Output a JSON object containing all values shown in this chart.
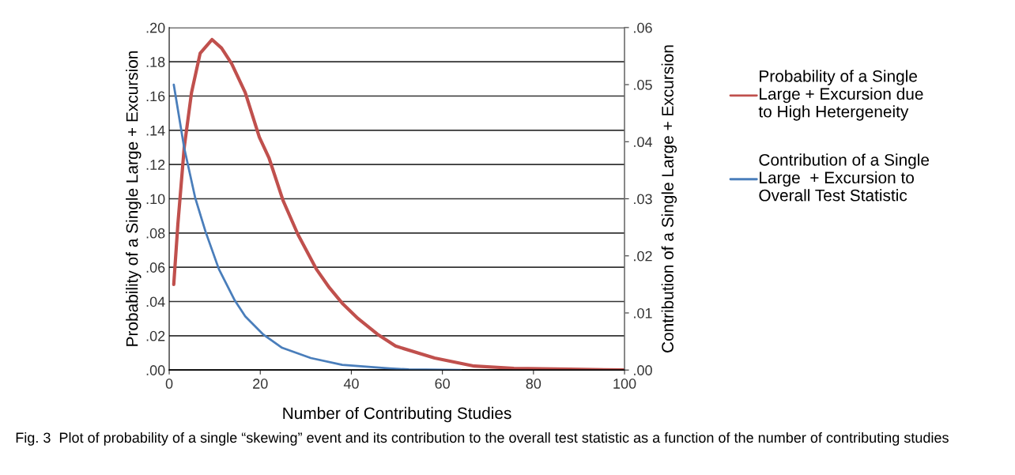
{
  "chart_data": {
    "type": "line",
    "xlabel": "Number of Contributing Studies",
    "ylabel": "Probability of a Single Large + Excursion",
    "y2label": "Contribution of a Single Large + Excursion",
    "annotations": [
      "Fig. 3  Plot of probability of a single “skewing” event and its contribution to the overall test statistic as a function of the number of contributing studies"
    ],
    "xlim": [
      0,
      100
    ],
    "xticks": [
      0,
      20,
      40,
      60,
      80,
      100
    ],
    "ylim": [
      0,
      0.2
    ],
    "yticks": [
      {
        "value": 0,
        "label": ".00"
      },
      {
        "value": 0.02,
        "label": ".02"
      },
      {
        "value": 0.04,
        "label": ".04"
      },
      {
        "value": 0.06,
        "label": ".06"
      },
      {
        "value": 0.08,
        "label": ".08"
      },
      {
        "value": 0.1,
        "label": ".10"
      },
      {
        "value": 0.12,
        "label": ".12"
      },
      {
        "value": 0.14,
        "label": ".14"
      },
      {
        "value": 0.16,
        "label": ".16"
      },
      {
        "value": 0.18,
        "label": ".18"
      },
      {
        "value": 0.2,
        "label": ".20"
      }
    ],
    "y2lim": [
      0,
      0.06
    ],
    "y2ticks": [
      {
        "value": 0,
        "label": ".00"
      },
      {
        "value": 0.01,
        "label": ".01"
      },
      {
        "value": 0.02,
        "label": ".02"
      },
      {
        "value": 0.03,
        "label": ".03"
      },
      {
        "value": 0.04,
        "label": ".04"
      },
      {
        "value": 0.05,
        "label": ".05"
      },
      {
        "value": 0.06,
        "label": ".06"
      }
    ],
    "grid": "y",
    "legend": "right",
    "marker": "none",
    "line_style": "solid",
    "series": [
      {
        "name": "Probability of a Single\nLarge + Excursion due\nto High Hetergeneity",
        "color": "#c0504d",
        "axis": "y",
        "x": [
          1,
          1.9,
          3.3,
          4.9,
          6.8,
          9.4,
          11.5,
          13.7,
          16.7,
          19.8,
          21.9,
          25,
          28.3,
          32.3,
          35.2,
          38,
          41.5,
          45.7,
          49.7,
          58.3,
          67,
          75.7,
          88,
          100
        ],
        "values": [
          0.05,
          0.085,
          0.13,
          0.162,
          0.185,
          0.193,
          0.188,
          0.179,
          0.162,
          0.136,
          0.124,
          0.099,
          0.079,
          0.059,
          0.048,
          0.039,
          0.03,
          0.021,
          0.014,
          0.007,
          0.0023,
          0.001,
          0.0005,
          0
        ]
      },
      {
        "name": "Contribution of a Single\nLarge  + Excursion to\nOverall Test Statistic",
        "color": "#4a7ebb",
        "axis": "y2",
        "x": [
          1,
          3.3,
          5.7,
          8,
          10.9,
          14.4,
          16.7,
          20.7,
          24.8,
          31.1,
          38,
          48.4,
          52.6,
          64
        ],
        "values": [
          0.05,
          0.0389,
          0.0302,
          0.0242,
          0.0177,
          0.0122,
          0.0094,
          0.0062,
          0.0039,
          0.0021,
          0.0009,
          0.0003,
          0.0001,
          0
        ]
      }
    ]
  }
}
